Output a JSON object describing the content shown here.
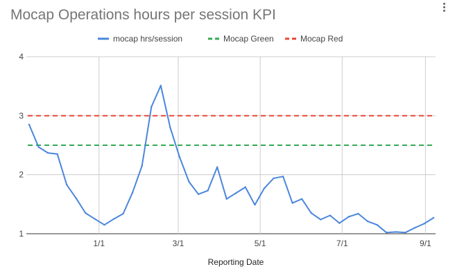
{
  "chart_data": {
    "type": "line",
    "title": "Mocap Operations hours per session KPI",
    "xlabel": "Reporting Date",
    "ylabel": "",
    "ylim": [
      1,
      4
    ],
    "yticks": [
      "1",
      "2",
      "3",
      "4"
    ],
    "xticks": [
      "1/1",
      "3/1",
      "5/1",
      "7/1",
      "9/1"
    ],
    "legend_position": "top",
    "series": [
      {
        "name": "mocap hrs/session",
        "color": "#4a86dc",
        "style": "solid",
        "x": [
          "2022-11-10",
          "2022-11-17",
          "2022-11-24",
          "2022-12-01",
          "2022-12-08",
          "2022-12-15",
          "2022-12-22",
          "2022-12-29",
          "2023-01-05",
          "2023-01-12",
          "2023-01-19",
          "2023-01-26",
          "2023-02-02",
          "2023-02-09",
          "2023-02-16",
          "2023-02-23",
          "2023-03-02",
          "2023-03-09",
          "2023-03-16",
          "2023-03-23",
          "2023-03-30",
          "2023-04-06",
          "2023-04-13",
          "2023-04-20",
          "2023-04-27",
          "2023-05-04",
          "2023-05-11",
          "2023-05-18",
          "2023-05-25",
          "2023-06-01",
          "2023-06-08",
          "2023-06-15",
          "2023-06-22",
          "2023-06-29",
          "2023-07-06",
          "2023-07-13",
          "2023-07-20",
          "2023-07-27",
          "2023-08-03",
          "2023-08-10",
          "2023-08-17",
          "2023-08-24",
          "2023-08-31",
          "2023-09-07"
        ],
        "values": [
          2.85,
          2.47,
          2.37,
          2.35,
          1.83,
          1.6,
          1.35,
          1.25,
          1.15,
          1.25,
          1.34,
          1.7,
          2.15,
          3.15,
          3.51,
          2.8,
          2.3,
          1.88,
          1.67,
          1.73,
          2.13,
          1.59,
          1.69,
          1.79,
          1.49,
          1.77,
          1.94,
          1.97,
          1.52,
          1.59,
          1.35,
          1.24,
          1.31,
          1.18,
          1.29,
          1.34,
          1.21,
          1.15,
          1.02,
          1.03,
          1.02,
          1.1,
          1.17,
          1.27
        ]
      },
      {
        "name": "Mocap Green",
        "color": "#34a853",
        "style": "dashed",
        "value": 2.5
      },
      {
        "name": "Mocap Red",
        "color": "#ea4335",
        "style": "dashed",
        "value": 3.0
      }
    ]
  }
}
